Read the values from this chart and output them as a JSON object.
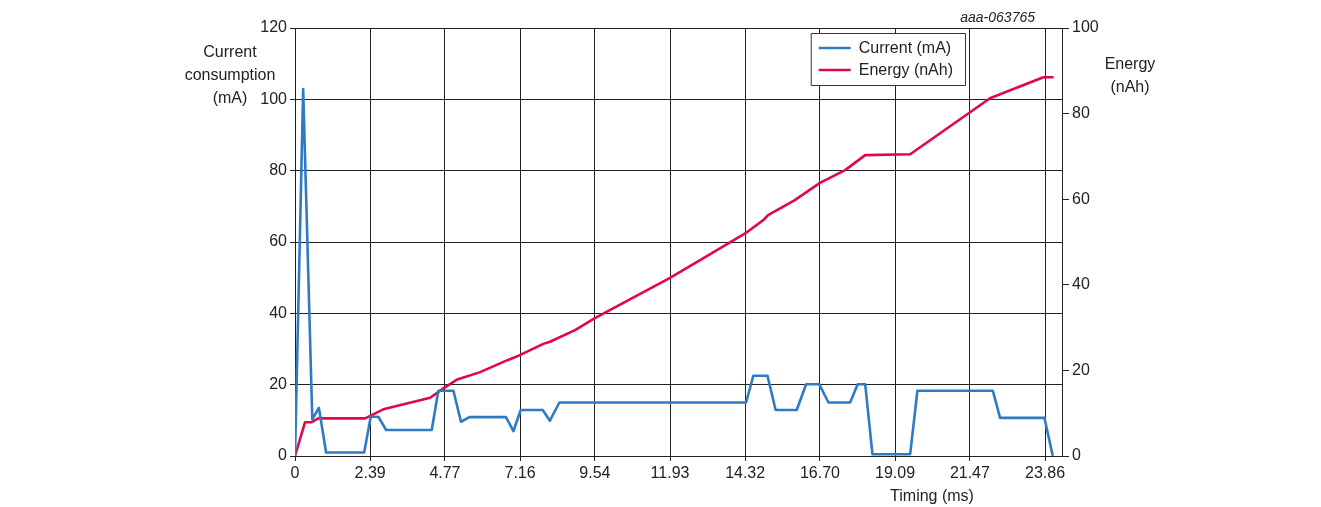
{
  "chart_data": {
    "type": "line",
    "xlabel": "Timing (ms)",
    "ylabel": "Current consumption (mA)",
    "y2label": "Energy (nAh)",
    "annotations": [
      "aaa-063765"
    ],
    "xlim": [
      0,
      24.4
    ],
    "xticks": [
      0,
      2.39,
      4.77,
      7.16,
      9.54,
      11.93,
      14.32,
      {
        "value": 16.7,
        "label": "16.70"
      },
      19.09,
      21.47,
      23.86
    ],
    "ylim": [
      0,
      120
    ],
    "yticks": [
      0,
      20,
      40,
      60,
      80,
      100,
      120
    ],
    "y2lim": [
      0,
      100
    ],
    "y2ticks": [
      0,
      20,
      40,
      60,
      80,
      100
    ],
    "grid": true,
    "legend": "top right",
    "marker": "none",
    "line_style": "solid",
    "series": [
      {
        "name": "Current (mA)",
        "color": "#2f7bc3",
        "x": [
          0,
          0.26,
          0.55,
          0.76,
          0.99,
          2.2,
          2.41,
          2.65,
          2.9,
          4.35,
          4.56,
          5.04,
          5.28,
          5.55,
          6.71,
          6.95,
          7.18,
          7.88,
          8.11,
          8.41,
          14.35,
          14.58,
          15.03,
          15.29,
          15.96,
          16.26,
          16.68,
          16.97,
          17.66,
          17.9,
          18.14,
          18.37,
          19.57,
          19.8,
          22.2,
          22.43,
          23.84,
          24.1
        ],
        "values": [
          0,
          102.9,
          10.3,
          13.5,
          1,
          1,
          11,
          11,
          7.3,
          7.3,
          18.3,
          18.3,
          9.6,
          10.9,
          10.9,
          7,
          12.9,
          12.9,
          9.9,
          15,
          15,
          22.5,
          22.5,
          12.9,
          12.9,
          20.1,
          20.1,
          15,
          15,
          20.1,
          20.1,
          0.5,
          0.5,
          18.3,
          18.3,
          10.7,
          10.7,
          0.3
        ]
      },
      {
        "name": "Energy (nAh)",
        "color": "#e2064e",
        "axis": "y2",
        "x": [
          0,
          0.32,
          0.53,
          0.74,
          2.23,
          2.81,
          4.3,
          4.72,
          5.14,
          5.89,
          6.63,
          7.1,
          7.9,
          8.11,
          8.91,
          9.54,
          11.93,
          14.32,
          14.9,
          15.05,
          15.9,
          16.7,
          17.5,
          18.14,
          19.57,
          22.11,
          23.81,
          24.1
        ],
        "values": [
          0,
          7.9,
          7.9,
          8.8,
          8.8,
          10.9,
          13.6,
          15.8,
          17.8,
          19.6,
          22,
          23.4,
          26.2,
          26.7,
          29.4,
          32.2,
          41.6,
          52,
          55.1,
          56.3,
          59.8,
          63.8,
          66.8,
          70.3,
          70.5,
          83.6,
          88.5,
          88.5
        ]
      }
    ]
  }
}
